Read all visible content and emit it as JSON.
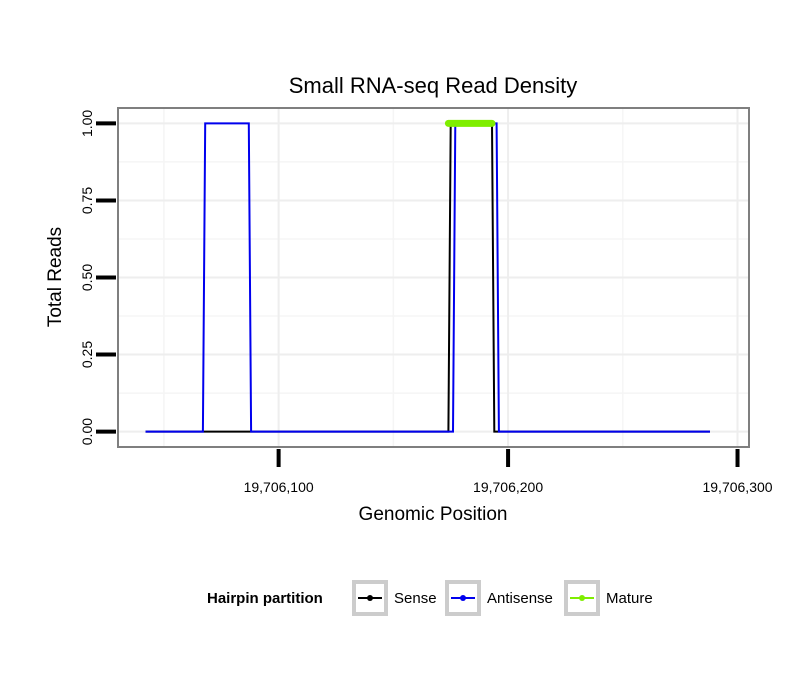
{
  "chart_data": {
    "type": "line",
    "title": "Small RNA-seq Read Density",
    "xlabel": "Genomic Position",
    "ylabel": "Total Reads",
    "xlim": [
      19706030,
      19706305
    ],
    "ylim": [
      -0.05,
      1.05
    ],
    "x_ticks": [
      19706100,
      19706200,
      19706300
    ],
    "x_tick_labels": [
      "19,706,100",
      "19,706,200",
      "19,706,300"
    ],
    "y_ticks": [
      0,
      0.25,
      0.5,
      0.75,
      1
    ],
    "y_tick_labels": [
      "0.00",
      "0.25",
      "0.50",
      "0.75",
      "1.00"
    ],
    "grid": true,
    "legend": {
      "title": "Hairpin partition",
      "position": "bottom",
      "entries": [
        "Sense",
        "Antisense",
        "Mature"
      ]
    },
    "series": [
      {
        "name": "Sense",
        "color": "#000000",
        "style": "line",
        "x": [
          19706042,
          19706174,
          19706175,
          19706193,
          19706194,
          19706288
        ],
        "y": [
          0,
          0,
          1,
          1,
          0,
          0
        ]
      },
      {
        "name": "Antisense",
        "color": "#0000ee",
        "style": "line",
        "x": [
          19706042,
          19706067,
          19706068,
          19706087,
          19706088,
          19706176,
          19706177,
          19706195,
          19706196,
          19706288
        ],
        "y": [
          0,
          0,
          1,
          1,
          0,
          0,
          1,
          1,
          0,
          0
        ]
      },
      {
        "name": "Mature",
        "color": "#7fee00",
        "style": "thick-line",
        "x": [
          19706174,
          19706193
        ],
        "y": [
          1,
          1
        ]
      }
    ]
  }
}
